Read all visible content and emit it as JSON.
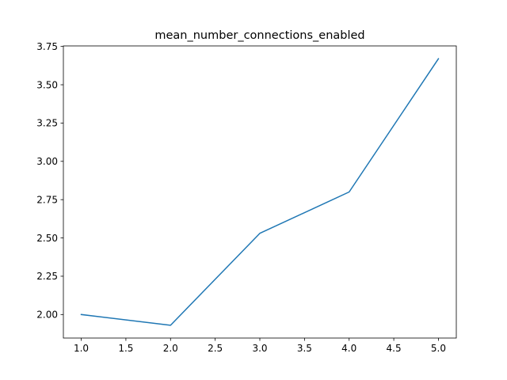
{
  "colors": {
    "line": "#1f77b4",
    "axes": "#000000",
    "background": "#ffffff"
  },
  "chart_data": {
    "type": "line",
    "title": "mean_number_connections_enabled",
    "xlabel": "",
    "ylabel": "",
    "x": [
      1.0,
      2.0,
      3.0,
      4.0,
      5.0
    ],
    "series": [
      {
        "values": [
          2.0,
          1.93,
          2.53,
          2.8,
          3.67
        ]
      }
    ],
    "xlim": [
      0.8,
      5.2
    ],
    "ylim": [
      1.8465,
      3.7535
    ],
    "xticks": [
      1.0,
      1.5,
      2.0,
      2.5,
      3.0,
      3.5,
      4.0,
      4.5,
      5.0
    ],
    "xtick_labels": [
      "1.0",
      "1.5",
      "2.0",
      "2.5",
      "3.0",
      "3.5",
      "4.0",
      "4.5",
      "5.0"
    ],
    "yticks": [
      2.0,
      2.25,
      2.5,
      2.75,
      3.0,
      3.25,
      3.5,
      3.75
    ],
    "ytick_labels": [
      "2.00",
      "2.25",
      "2.50",
      "2.75",
      "3.00",
      "3.25",
      "3.50",
      "3.75"
    ],
    "grid": false,
    "legend": "none"
  }
}
